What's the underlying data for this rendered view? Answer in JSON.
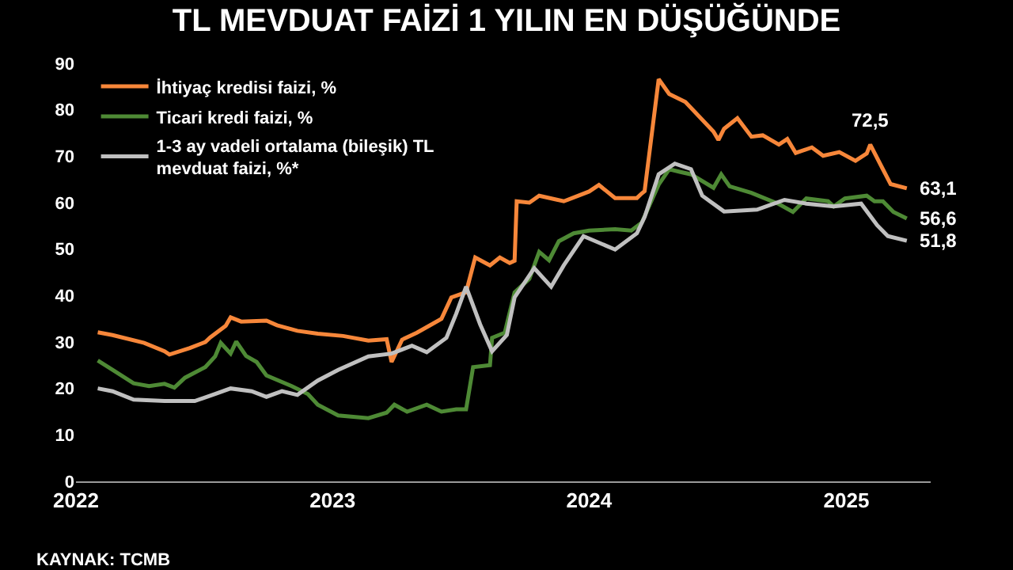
{
  "chart_data": {
    "type": "line",
    "title": "TL MEVDUAT FAİZİ 1 YILIN EN DÜŞÜĞÜNDE",
    "xlim": [
      "2022-01-01",
      "2025-05-01"
    ],
    "xticks": [
      {
        "value": "2022-01-01",
        "label": "2022"
      },
      {
        "value": "2023-01-01",
        "label": "2023"
      },
      {
        "value": "2024-01-01",
        "label": "2024"
      },
      {
        "value": "2025-01-01",
        "label": "2025"
      }
    ],
    "ylim": [
      0,
      90
    ],
    "yticks": [
      0,
      10,
      20,
      30,
      40,
      50,
      60,
      70,
      80,
      90
    ],
    "grid": false,
    "legend": "top left",
    "marker": "none",
    "line_style": "solid",
    "series": [
      {
        "name": "İhtiyaç kredisi faizi, %",
        "color": "#f7873a",
        "x": [
          "2022-02-01",
          "2022-02-22",
          "2022-04-08",
          "2022-05-07",
          "2022-05-14",
          "2022-06-12",
          "2022-07-04",
          "2022-07-11",
          "2022-08-02",
          "2022-08-09",
          "2022-08-24",
          "2022-09-29",
          "2022-10-14",
          "2022-11-12",
          "2022-12-11",
          "2023-01-16",
          "2023-02-21",
          "2023-03-19",
          "2023-03-26",
          "2023-04-10",
          "2023-05-01",
          "2023-05-22",
          "2023-06-05",
          "2023-06-19",
          "2023-07-10",
          "2023-07-23",
          "2023-08-13",
          "2023-08-27",
          "2023-09-10",
          "2023-09-17",
          "2023-09-20",
          "2023-10-08",
          "2023-10-22",
          "2023-11-26",
          "2024-01-01",
          "2024-01-15",
          "2024-02-07",
          "2024-03-09",
          "2024-03-16",
          "2024-03-20",
          "2024-04-09",
          "2024-04-24",
          "2024-05-17",
          "2024-06-26",
          "2024-07-03",
          "2024-07-11",
          "2024-07-30",
          "2024-08-19",
          "2024-09-04",
          "2024-09-27",
          "2024-10-09",
          "2024-10-21",
          "2024-11-13",
          "2024-11-29",
          "2024-12-22",
          "2025-01-14",
          "2025-01-30",
          "2025-02-04",
          "2025-02-22",
          "2025-03-05",
          "2025-03-28"
        ],
        "values": [
          32.1,
          31.5,
          29.8,
          28,
          27.3,
          28.7,
          30,
          31,
          33.5,
          35.3,
          34.4,
          34.6,
          33.6,
          32.4,
          31.8,
          31.3,
          30.3,
          30.6,
          25.7,
          30.5,
          32,
          33.8,
          35,
          39.6,
          40.7,
          48.2,
          46.5,
          48.2,
          47,
          47.5,
          60.3,
          60,
          61.5,
          60.3,
          62.4,
          63.8,
          61,
          61,
          62,
          62.5,
          86.6,
          83.4,
          81.7,
          75.3,
          73.5,
          75.9,
          78.2,
          74.2,
          74.5,
          72.5,
          73.7,
          70.7,
          71.9,
          70.1,
          70.9,
          69,
          70.6,
          72.5,
          67.2,
          64,
          63.1
        ]
      },
      {
        "name": "Ticari kredi faizi, %",
        "color": "#4e8a35",
        "x": [
          "2022-02-01",
          "2022-02-22",
          "2022-03-24",
          "2022-04-15",
          "2022-05-07",
          "2022-05-21",
          "2022-06-05",
          "2022-07-04",
          "2022-07-18",
          "2022-07-26",
          "2022-08-09",
          "2022-08-17",
          "2022-08-31",
          "2022-09-15",
          "2022-09-29",
          "2022-11-04",
          "2022-11-27",
          "2022-12-11",
          "2023-01-09",
          "2023-02-21",
          "2023-03-19",
          "2023-03-30",
          "2023-04-17",
          "2023-05-15",
          "2023-06-05",
          "2023-06-26",
          "2023-07-10",
          "2023-07-20",
          "2023-08-13",
          "2023-08-16",
          "2023-09-03",
          "2023-09-17",
          "2023-10-08",
          "2023-10-22",
          "2023-11-05",
          "2023-11-19",
          "2023-12-10",
          "2024-01-01",
          "2024-02-07",
          "2024-03-01",
          "2024-03-16",
          "2024-04-09",
          "2024-04-24",
          "2024-05-10",
          "2024-05-25",
          "2024-06-26",
          "2024-07-07",
          "2024-07-19",
          "2024-08-19",
          "2024-09-27",
          "2024-10-17",
          "2024-11-05",
          "2024-12-06",
          "2024-12-14",
          "2024-12-30",
          "2025-01-30",
          "2025-02-10",
          "2025-02-22",
          "2025-03-09",
          "2025-03-28"
        ],
        "values": [
          26,
          24,
          21.1,
          20.5,
          21,
          20.2,
          22.3,
          24.6,
          26.9,
          29.8,
          27.5,
          30.1,
          27,
          25.7,
          22.8,
          20.5,
          18.8,
          16.5,
          14.2,
          13.6,
          14.8,
          16.5,
          15,
          16.5,
          15,
          15.5,
          15.5,
          24.6,
          25,
          30.9,
          32,
          40.7,
          43.6,
          49.4,
          47.6,
          51.7,
          53.4,
          54,
          54.3,
          54,
          55.7,
          63.9,
          67.2,
          66.6,
          66.1,
          63.2,
          66.1,
          63.5,
          62.1,
          59.7,
          58,
          60.9,
          60.3,
          59.2,
          60.9,
          61.5,
          60.3,
          60.3,
          58,
          56.6
        ]
      },
      {
        "name": "1-3 ay vadeli ortalama (bileşik) TL\nmevduat faizi, %*",
        "color": "#c0c0c0",
        "x": [
          "2022-02-01",
          "2022-02-22",
          "2022-03-24",
          "2022-05-07",
          "2022-06-19",
          "2022-07-18",
          "2022-08-09",
          "2022-09-08",
          "2022-09-29",
          "2022-10-21",
          "2022-11-12",
          "2022-12-11",
          "2023-01-09",
          "2023-02-21",
          "2023-03-26",
          "2023-04-24",
          "2023-05-15",
          "2023-06-12",
          "2023-06-26",
          "2023-07-10",
          "2023-07-30",
          "2023-08-16",
          "2023-09-06",
          "2023-09-17",
          "2023-10-15",
          "2023-11-08",
          "2023-11-26",
          "2023-12-24",
          "2024-02-07",
          "2024-03-09",
          "2024-03-20",
          "2024-04-09",
          "2024-05-02",
          "2024-05-25",
          "2024-06-10",
          "2024-07-11",
          "2024-08-27",
          "2024-10-05",
          "2024-11-05",
          "2024-12-14",
          "2025-01-22",
          "2025-02-14",
          "2025-03-01",
          "2025-03-28"
        ],
        "values": [
          20,
          19.4,
          17.6,
          17.3,
          17.3,
          18.8,
          20,
          19.4,
          18.2,
          19.4,
          18.6,
          21.7,
          24,
          26.9,
          27.5,
          29.2,
          27.8,
          30.9,
          36.1,
          41.9,
          33.8,
          28,
          31.5,
          39.6,
          45.9,
          41.9,
          46.5,
          52.8,
          49.9,
          53.4,
          56.9,
          66.1,
          68.4,
          67.2,
          61.5,
          58.1,
          58.5,
          60.6,
          59.8,
          59.2,
          59.8,
          55.1,
          52.8,
          51.8
        ]
      }
    ],
    "annotations": [
      {
        "text": "72,5",
        "x": "2025-02-04",
        "y": 72.5
      },
      {
        "text": "63,1",
        "x": "2025-03-28",
        "y": 63.1
      },
      {
        "text": "56,6",
        "x": "2025-03-28",
        "y": 56.6
      },
      {
        "text": "51,8",
        "x": "2025-03-28",
        "y": 51.8
      },
      "KAYNAK: TCMB"
    ]
  }
}
